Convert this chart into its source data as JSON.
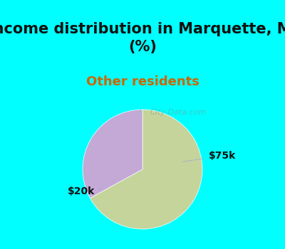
{
  "title": "Income distribution in Marquette, MI\n(%)",
  "subtitle": "Other residents",
  "title_fontsize": 15,
  "subtitle_fontsize": 13,
  "title_color": "#111111",
  "subtitle_color": "#cc6600",
  "slices": [
    0.67,
    0.33
  ],
  "labels": [
    "$20k",
    "$75k"
  ],
  "slice_colors": [
    "#c5d49a",
    "#c4a8d6"
  ],
  "background_cyan": "#00FFFF",
  "chart_bg_left": "#c8eedd",
  "chart_bg_right": "#e8f8f0",
  "label_fontsize": 10,
  "startangle": 90,
  "watermark": "City-Data.com",
  "label_color": "#111111"
}
